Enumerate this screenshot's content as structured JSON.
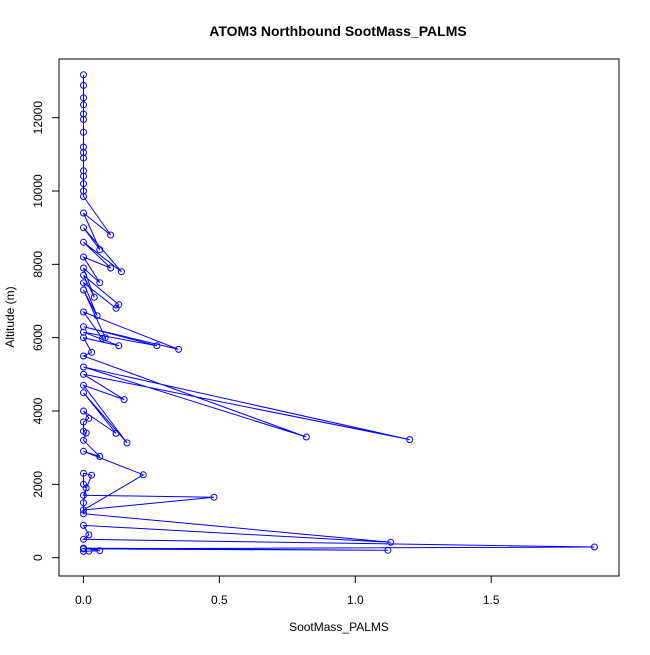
{
  "chart_data": {
    "type": "line",
    "title": "ATOM3 Northbound SootMass_PALMS",
    "xlabel": "SootMass_PALMS",
    "ylabel": "Altitude (m)",
    "xlim": [
      -0.09,
      1.97
    ],
    "ylim": [
      -500,
      13600
    ],
    "x_ticks": [
      0.0,
      0.5,
      1.0,
      1.5
    ],
    "x_tick_labels": [
      "0.0",
      "0.5",
      "1.0",
      "1.5"
    ],
    "y_ticks": [
      0,
      2000,
      4000,
      6000,
      8000,
      10000,
      12000
    ],
    "y_tick_labels": [
      "0",
      "2000",
      "4000",
      "6000",
      "8000",
      "10000",
      "12000"
    ],
    "grid": false,
    "legend": "none",
    "color": "#0000ff",
    "marker": "open-circle",
    "series": [
      {
        "points": [
          [
            0.0,
            13170
          ],
          [
            0.0,
            12880
          ],
          [
            0.0,
            12540
          ],
          [
            0.0,
            12350
          ],
          [
            0.0,
            12100
          ],
          [
            0.0,
            11950
          ],
          [
            0.0,
            11600
          ],
          [
            0.0,
            11200
          ],
          [
            0.0,
            11050
          ],
          [
            0.0,
            10900
          ],
          [
            0.0,
            10550
          ],
          [
            0.0,
            10400
          ],
          [
            0.0,
            10200
          ],
          [
            0.0,
            10000
          ],
          [
            0.0,
            9850
          ],
          [
            0.1,
            8800
          ],
          [
            0.0,
            9400
          ],
          [
            0.06,
            8400
          ],
          [
            0.0,
            9000
          ],
          [
            0.14,
            7800
          ],
          [
            0.0,
            8600
          ],
          [
            0.1,
            7900
          ],
          [
            0.0,
            8200
          ],
          [
            0.06,
            7500
          ],
          [
            0.0,
            7900
          ],
          [
            0.04,
            7100
          ],
          [
            0.0,
            7700
          ],
          [
            0.13,
            6900
          ],
          [
            0.12,
            6800
          ],
          [
            0.0,
            7500
          ],
          [
            0.05,
            6600
          ],
          [
            0.0,
            7300
          ],
          [
            0.08,
            6000
          ],
          [
            0.07,
            5980
          ],
          [
            0.0,
            6700
          ],
          [
            0.35,
            5680
          ],
          [
            0.0,
            6300
          ],
          [
            0.27,
            5780
          ],
          [
            0.0,
            6150
          ],
          [
            0.13,
            5780
          ],
          [
            0.0,
            6000
          ],
          [
            0.03,
            5600
          ],
          [
            0.0,
            5500
          ],
          [
            0.82,
            3290
          ],
          [
            0.0,
            5200
          ],
          [
            1.2,
            3220
          ],
          [
            0.0,
            5000
          ],
          [
            0.15,
            4310
          ],
          [
            0.0,
            4700
          ],
          [
            0.16,
            3130
          ],
          [
            0.0,
            4500
          ],
          [
            0.12,
            3390
          ],
          [
            0.0,
            4000
          ],
          [
            0.02,
            3800
          ],
          [
            0.0,
            3700
          ],
          [
            0.0,
            3450
          ],
          [
            0.01,
            3400
          ],
          [
            0.0,
            3200
          ],
          [
            0.06,
            2760
          ],
          [
            0.0,
            2900
          ],
          [
            0.22,
            2260
          ],
          [
            0.0,
            1300
          ],
          [
            0.48,
            1650
          ],
          [
            0.0,
            1700
          ],
          [
            0.03,
            2250
          ],
          [
            0.0,
            2300
          ],
          [
            0.0,
            2000
          ],
          [
            0.01,
            1900
          ],
          [
            0.0,
            1500
          ],
          [
            0.0,
            1200
          ],
          [
            1.13,
            420
          ],
          [
            0.0,
            880
          ],
          [
            0.02,
            620
          ],
          [
            0.0,
            500
          ],
          [
            1.88,
            290
          ],
          [
            0.0,
            240
          ],
          [
            1.12,
            200
          ],
          [
            0.0,
            260
          ],
          [
            0.06,
            190
          ],
          [
            0.02,
            180
          ],
          [
            0.0,
            170
          ]
        ]
      }
    ]
  }
}
